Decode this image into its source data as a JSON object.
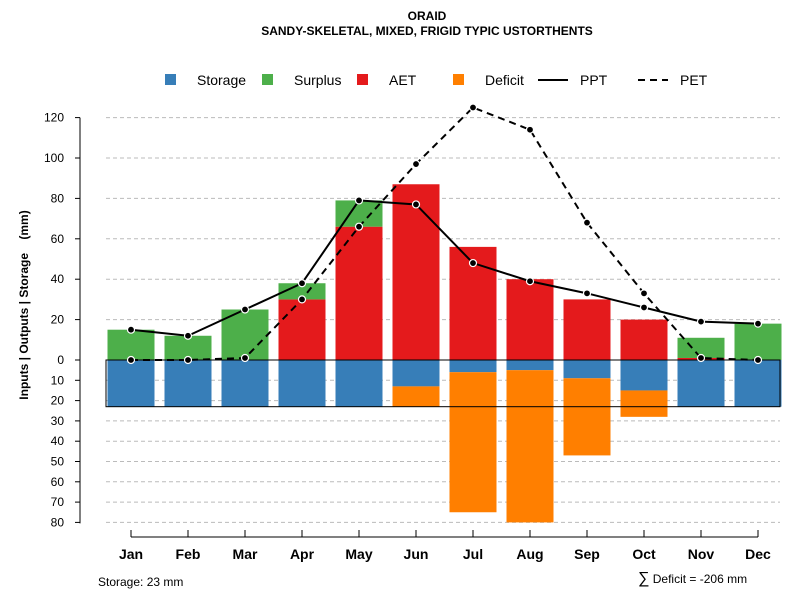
{
  "title": "ORAID",
  "subtitle": "SANDY-SKELETAL, MIXED, FRIGID TYPIC USTORTHENTS",
  "footer": {
    "storage_label": "Storage: 23 mm",
    "deficit_symbol": "∑",
    "deficit_label": "Deficit = -206 mm"
  },
  "colors": {
    "storage": "#377EB8",
    "surplus": "#4DAF4A",
    "aet": "#E41A1C",
    "deficit": "#FF7F00",
    "grid": "#BBBBBB"
  },
  "chart_data": {
    "type": "bar",
    "title": "ORAID",
    "subtitle": "SANDY-SKELETAL, MIXED, FRIGID TYPIC USTORTHENTS",
    "ylabel": "Inputs | Outputs | Storage    (mm)",
    "xlabel": "",
    "categories": [
      "Jan",
      "Feb",
      "Mar",
      "Apr",
      "May",
      "Jun",
      "Jul",
      "Aug",
      "Sep",
      "Oct",
      "Nov",
      "Dec"
    ],
    "y_ticks_upper": [
      0,
      20,
      40,
      60,
      80,
      100,
      120
    ],
    "y_ticks_lower": [
      10,
      20,
      30,
      40,
      50,
      60,
      70,
      80
    ],
    "ylim_upper": [
      0,
      125
    ],
    "ylim_lower": [
      0,
      80
    ],
    "legend": [
      {
        "name": "Storage",
        "kind": "box",
        "color": "#377EB8"
      },
      {
        "name": "Surplus",
        "kind": "box",
        "color": "#4DAF4A"
      },
      {
        "name": "AET",
        "kind": "box",
        "color": "#E41A1C"
      },
      {
        "name": "Deficit",
        "kind": "box",
        "color": "#FF7F00"
      },
      {
        "name": "PPT",
        "kind": "solid"
      },
      {
        "name": "PET",
        "kind": "dashed"
      }
    ],
    "legend_position": "top",
    "storage_capacity": 23,
    "series": [
      {
        "name": "Storage",
        "values": [
          23,
          23,
          23,
          23,
          23,
          13,
          6,
          5,
          9,
          15,
          23,
          23
        ]
      },
      {
        "name": "Surplus",
        "values": [
          15,
          12,
          25,
          8,
          13,
          0,
          0,
          0,
          0,
          0,
          10,
          18
        ]
      },
      {
        "name": "AET",
        "values": [
          0,
          0,
          0,
          30,
          66,
          87,
          56,
          40,
          30,
          20,
          1,
          0
        ]
      },
      {
        "name": "Deficit",
        "values": [
          0,
          0,
          0,
          0,
          0,
          10,
          69,
          75,
          38,
          13,
          0,
          0
        ]
      },
      {
        "name": "PPT",
        "values": [
          15,
          12,
          25,
          38,
          79,
          77,
          48,
          39,
          33,
          26,
          19,
          18
        ]
      },
      {
        "name": "PET",
        "values": [
          0,
          0,
          1,
          30,
          66,
          97,
          125,
          114,
          68,
          33,
          1,
          0
        ]
      }
    ]
  }
}
